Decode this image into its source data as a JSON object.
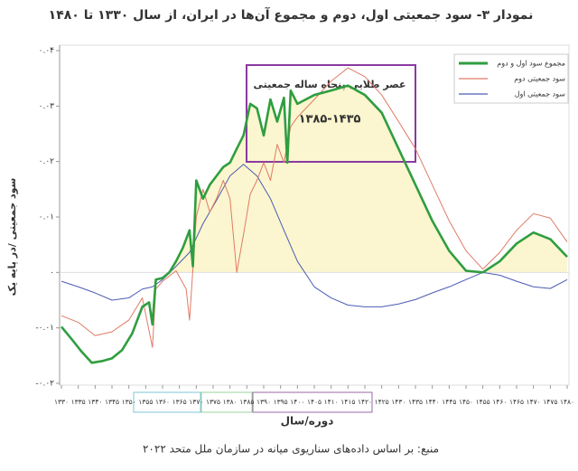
{
  "chart_data": {
    "type": "line",
    "title": "نمودار ۳- سود جمعیتی اول، دوم و مجموع آن‌ها در ایران، از سال ۱۳۳۰ تا ۱۴۸۰",
    "xlabel": "دوره/سال",
    "ylabel": "سود جمعیتی /در پایه یک",
    "source": "منبع: بر اساس داده‌های سناریوی میانه در سازمان ملل متحد ۲۰۲۲",
    "annotations": [
      "عصر طلایی پنجاه ساله جمعیتی",
      "۱۳۸۵-۱۴۳۵"
    ],
    "legend": "upper right",
    "grid": false,
    "xlim": [
      1330,
      1480
    ],
    "ylim": [
      -0.02,
      0.04
    ],
    "xticks": [
      {
        "value": 1330,
        "label": "۱۳۳۰"
      },
      {
        "value": 1335,
        "label": "۱۳۳۵"
      },
      {
        "value": 1340,
        "label": "۱۳۴۰"
      },
      {
        "value": 1345,
        "label": "۱۳۴۵"
      },
      {
        "value": 1350,
        "label": "۱۳۵۰"
      },
      {
        "value": 1355,
        "label": "۱۳۵۵"
      },
      {
        "value": 1360,
        "label": "۱۳۶۰"
      },
      {
        "value": 1365,
        "label": "۱۳۶۵"
      },
      {
        "value": 1370,
        "label": "۱۳۷۰"
      },
      {
        "value": 1375,
        "label": "۱۳۷۵"
      },
      {
        "value": 1380,
        "label": "۱۳۸۰"
      },
      {
        "value": 1385,
        "label": "۱۳۸۵"
      },
      {
        "value": 1390,
        "label": "۱۳۹۰"
      },
      {
        "value": 1395,
        "label": "۱۳۹۵"
      },
      {
        "value": 1400,
        "label": "۱۴۰۰"
      },
      {
        "value": 1405,
        "label": "۱۴۰۵"
      },
      {
        "value": 1410,
        "label": "۱۴۱۰"
      },
      {
        "value": 1415,
        "label": "۱۴۱۵"
      },
      {
        "value": 1420,
        "label": "۱۴۲۰"
      },
      {
        "value": 1425,
        "label": "۱۴۲۵"
      },
      {
        "value": 1430,
        "label": "۱۴۳۰"
      },
      {
        "value": 1435,
        "label": "۱۴۳۵"
      },
      {
        "value": 1440,
        "label": "۱۴۴۰"
      },
      {
        "value": 1445,
        "label": "۱۴۴۵"
      },
      {
        "value": 1450,
        "label": "۱۴۵۰"
      },
      {
        "value": 1455,
        "label": "۱۴۵۵"
      },
      {
        "value": 1460,
        "label": "۱۴۶۰"
      },
      {
        "value": 1465,
        "label": "۱۴۶۵"
      },
      {
        "value": 1470,
        "label": "۱۴۷۰"
      },
      {
        "value": 1475,
        "label": "۱۴۷۵"
      },
      {
        "value": 1480,
        "label": "۱۴۸۰"
      }
    ],
    "yticks": [
      {
        "value": 0.04,
        "label": "۰.۰۴"
      },
      {
        "value": 0.03,
        "label": "۰.۰۳"
      },
      {
        "value": 0.02,
        "label": "۰.۰۲"
      },
      {
        "value": 0.01,
        "label": "۰.۰۱"
      },
      {
        "value": 0,
        "label": "۰"
      },
      {
        "value": -0.01,
        "label": "-۰.۰۱"
      },
      {
        "value": -0.02,
        "label": "-۰.۰۲"
      }
    ],
    "series": [
      {
        "name": "مجموع سود اول و دوم",
        "color": "#2f9e3f",
        "fill": "#fbf6cf",
        "x": [
          1330,
          1333,
          1336,
          1339,
          1342,
          1345,
          1348,
          1351,
          1354,
          1356,
          1357,
          1358,
          1360,
          1362,
          1364,
          1366,
          1368,
          1369,
          1370,
          1372,
          1374,
          1376,
          1378,
          1380,
          1382,
          1384,
          1386,
          1388,
          1390,
          1392,
          1394,
          1396,
          1397,
          1398,
          1400,
          1405,
          1410,
          1415,
          1420,
          1425,
          1430,
          1435,
          1440,
          1445,
          1450,
          1455,
          1460,
          1465,
          1470,
          1475,
          1480
        ],
        "values": [
          -0.0098,
          -0.012,
          -0.0143,
          -0.0163,
          -0.016,
          -0.0155,
          -0.014,
          -0.011,
          -0.0062,
          -0.0054,
          -0.0094,
          -0.0013,
          -0.001,
          0,
          0.002,
          0.0044,
          0.0076,
          0.0011,
          0.0166,
          0.0133,
          0.0158,
          0.0174,
          0.019,
          0.0198,
          0.0223,
          0.0247,
          0.0304,
          0.0296,
          0.0247,
          0.0312,
          0.0272,
          0.0315,
          0.0198,
          0.0328,
          0.0304,
          0.032,
          0.0328,
          0.0337,
          0.032,
          0.0288,
          0.0223,
          0.0158,
          0.0093,
          0.0039,
          0.0003,
          0,
          0.002,
          0.0052,
          0.0072,
          0.006,
          0.0028
        ]
      },
      {
        "name": "سود جمعیتی دوم",
        "color": "#e07a66",
        "x": [
          1330,
          1335,
          1340,
          1345,
          1350,
          1354,
          1357,
          1358,
          1360,
          1364,
          1367,
          1368,
          1370,
          1372,
          1374,
          1376,
          1378,
          1380,
          1382,
          1384,
          1386,
          1388,
          1390,
          1392,
          1394,
          1396,
          1398,
          1400,
          1405,
          1410,
          1415,
          1420,
          1425,
          1430,
          1435,
          1440,
          1445,
          1450,
          1455,
          1460,
          1465,
          1470,
          1475,
          1480
        ],
        "values": [
          -0.0078,
          -0.009,
          -0.0114,
          -0.0107,
          -0.0086,
          -0.0046,
          -0.0135,
          -0.003,
          -0.0016,
          0.0003,
          -0.003,
          -0.0086,
          0.01,
          0.015,
          0.0109,
          0.0133,
          0.0166,
          0.0133,
          0,
          0.0068,
          0.0141,
          0.0166,
          0.0198,
          0.0166,
          0.0231,
          0.0198,
          0.0263,
          0.028,
          0.0312,
          0.0345,
          0.0369,
          0.0353,
          0.032,
          0.0272,
          0.0223,
          0.0158,
          0.0093,
          0.0039,
          0.0006,
          0.0036,
          0.0076,
          0.0106,
          0.0098,
          0.0055
        ]
      },
      {
        "name": "سود جمعیتی اول",
        "color": "#4b5cb2",
        "x": [
          1330,
          1335,
          1340,
          1345,
          1350,
          1354,
          1357,
          1360,
          1364,
          1368,
          1372,
          1376,
          1380,
          1384,
          1388,
          1392,
          1396,
          1400,
          1405,
          1410,
          1415,
          1420,
          1425,
          1430,
          1435,
          1440,
          1445,
          1450,
          1455,
          1460,
          1465,
          1470,
          1475,
          1480
        ],
        "values": [
          -0.0016,
          -0.0026,
          -0.0037,
          -0.005,
          -0.0046,
          -0.003,
          -0.0026,
          -0.0013,
          0.0011,
          0.0036,
          0.0088,
          0.013,
          0.0174,
          0.0195,
          0.0174,
          0.0133,
          0.0076,
          0.002,
          -0.0026,
          -0.0046,
          -0.0059,
          -0.0062,
          -0.0062,
          -0.0057,
          -0.0049,
          -0.0037,
          -0.0026,
          -0.0013,
          0,
          -0.0005,
          -0.0016,
          -0.0026,
          -0.0029,
          -0.0013
        ]
      }
    ]
  }
}
